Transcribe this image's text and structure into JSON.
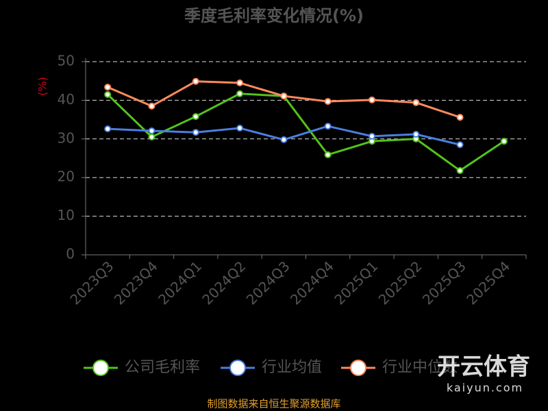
{
  "chart_data": {
    "type": "line",
    "title": "季度毛利率变化情况(%)",
    "y_label": "(%)",
    "categories": [
      "2023Q3",
      "2023Q4",
      "2024Q1",
      "2024Q2",
      "2024Q3",
      "2024Q4",
      "2025Q1",
      "2025Q2",
      "2025Q3",
      "2025Q4"
    ],
    "series": [
      {
        "name": "公司毛利率",
        "color": "#52c41a",
        "values": [
          41.5,
          30.5,
          35.8,
          41.7,
          41.1,
          25.9,
          29.4,
          30.0,
          21.8,
          29.4
        ]
      },
      {
        "name": "行业均值",
        "color": "#4a7fe0",
        "values": [
          32.6,
          32.1,
          31.7,
          32.8,
          29.8,
          33.3,
          30.7,
          31.2,
          28.5,
          null
        ]
      },
      {
        "name": "行业中位数",
        "color": "#ff8a5c",
        "values": [
          43.4,
          38.5,
          44.9,
          44.5,
          41.1,
          39.7,
          40.1,
          39.4,
          35.6,
          null
        ]
      }
    ],
    "ylim": [
      0,
      50
    ],
    "yticks": [
      0,
      10,
      20,
      30,
      40,
      50
    ],
    "grid": true,
    "source": "制图数据来自恒生聚源数据库",
    "watermark": {
      "brand": "开云体育",
      "url": "kaiyun.com"
    }
  }
}
